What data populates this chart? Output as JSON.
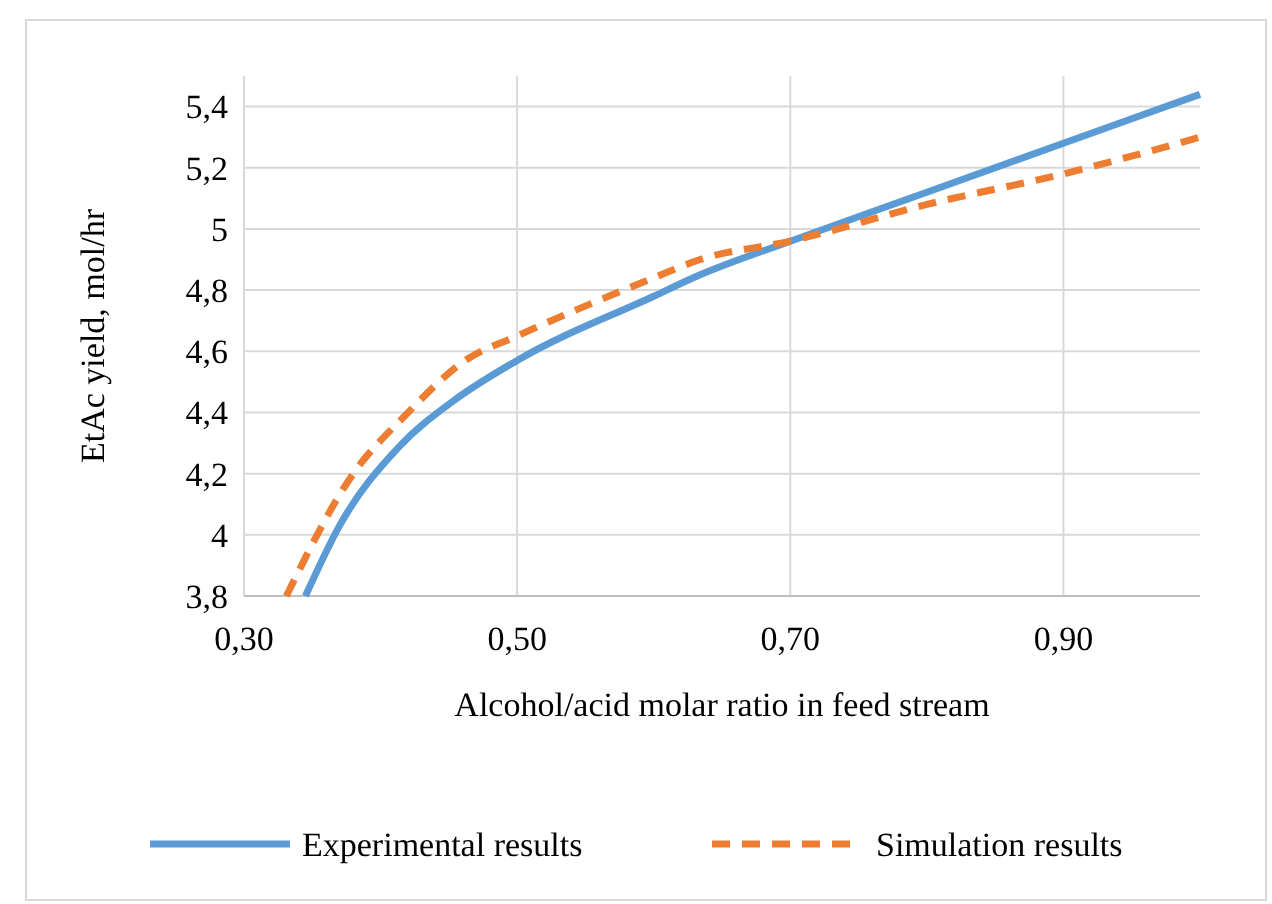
{
  "chart_data": {
    "type": "line",
    "xlabel": "Alcohol/acid molar ratio in feed stream",
    "ylabel": "EtAc yield, mol/hr",
    "xlim": [
      0.3,
      1.0
    ],
    "xticks": [
      {
        "value": 0.3,
        "label": "0,30"
      },
      {
        "value": 0.5,
        "label": "0,50"
      },
      {
        "value": 0.7,
        "label": "0,70"
      },
      {
        "value": 0.9,
        "label": "0,90"
      }
    ],
    "ylim": [
      3.8,
      5.5
    ],
    "yticks": [
      {
        "value": 3.8,
        "label": "3,8"
      },
      4,
      {
        "value": 4.2,
        "label": "4,2"
      },
      {
        "value": 4.4,
        "label": "4,4"
      },
      {
        "value": 4.6,
        "label": "4,6"
      },
      {
        "value": 4.8,
        "label": "4,8"
      },
      5,
      {
        "value": 5.2,
        "label": "5,2"
      },
      {
        "value": 5.4,
        "label": "5,4"
      }
    ],
    "grid": true,
    "legend": "bottom",
    "marker": "none",
    "series": [
      {
        "name": "Experimental results",
        "color": "#5b9bd5",
        "line_style": "solid",
        "x": [
          0.345,
          0.37,
          0.414,
          0.454,
          0.5,
          0.6,
          0.634,
          0.7,
          0.8,
          0.9,
          1.0
        ],
        "values": [
          3.8,
          4.03,
          4.29,
          4.44,
          4.57,
          4.78,
          4.85,
          4.96,
          5.12,
          5.28,
          5.44
        ]
      },
      {
        "name": "Simulation results",
        "color": "#ed7d31",
        "line_style": "dashed",
        "x": [
          0.331,
          0.38,
          0.418,
          0.462,
          0.5,
          0.6,
          0.634,
          0.7,
          0.8,
          0.9,
          1.0
        ],
        "values": [
          3.8,
          4.2,
          4.39,
          4.57,
          4.65,
          4.84,
          4.9,
          4.96,
          5.08,
          5.18,
          5.3
        ]
      }
    ]
  }
}
